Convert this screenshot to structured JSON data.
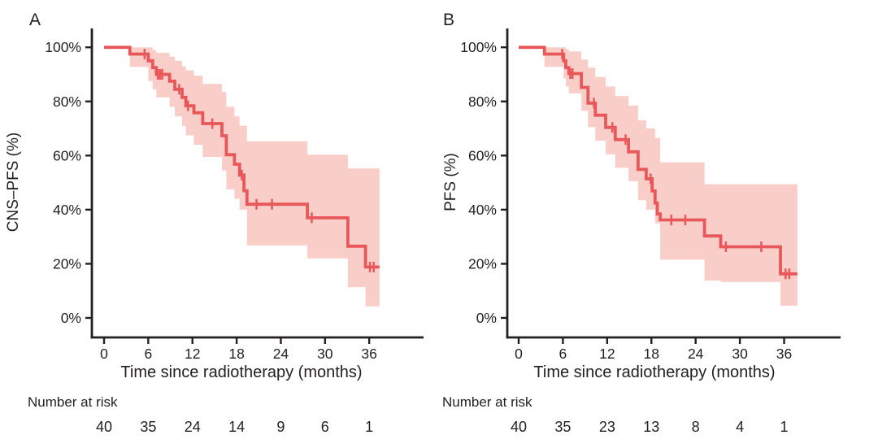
{
  "colors": {
    "curve": "#e8585b",
    "band": "#f9cec9",
    "axis": "#231f20",
    "text": "#231f20",
    "background": "#ffffff"
  },
  "chart_data": [
    {
      "type": "line",
      "subtype": "kaplan-meier-step",
      "panel_label": "A",
      "ylabel": "CNS–PFS (%)",
      "xlabel": "Time since radiotherapy (months)",
      "x_ticks": [
        "0",
        "6",
        "12",
        "18",
        "24",
        "30",
        "36"
      ],
      "x_tick_values": [
        0,
        6,
        12,
        18,
        24,
        30,
        36
      ],
      "y_ticks": [
        "0%",
        "20%",
        "40%",
        "60%",
        "80%",
        "100%"
      ],
      "y_tick_values": [
        0,
        20,
        40,
        60,
        80,
        100
      ],
      "xlim": [
        0,
        38
      ],
      "ylim": [
        0,
        100
      ],
      "grid": false,
      "legend": "none",
      "risk_label": "Number at risk",
      "number_at_risk": [
        "40",
        "35",
        "24",
        "14",
        "9",
        "6",
        "1"
      ],
      "end_time": 37.4,
      "steps": [
        [
          0,
          100
        ],
        [
          3.5,
          97.5
        ],
        [
          6.0,
          95
        ],
        [
          6.6,
          92.5
        ],
        [
          7.1,
          90
        ],
        [
          8.9,
          87.5
        ],
        [
          9.6,
          84.5
        ],
        [
          10.6,
          81.5
        ],
        [
          11.1,
          78.4
        ],
        [
          12.2,
          75.8
        ],
        [
          13.4,
          71.8
        ],
        [
          16.0,
          67.3
        ],
        [
          16.6,
          60.3
        ],
        [
          17.7,
          56.8
        ],
        [
          18.4,
          52.8
        ],
        [
          19.0,
          47.0
        ],
        [
          19.4,
          42.0
        ],
        [
          27.6,
          37.0
        ],
        [
          33.1,
          26.5
        ],
        [
          35.5,
          18.8
        ]
      ],
      "censors": [
        [
          5.5,
          97.5
        ],
        [
          7.3,
          90
        ],
        [
          7.6,
          90
        ],
        [
          7.9,
          90
        ],
        [
          10.2,
          84.5
        ],
        [
          11.4,
          78.4
        ],
        [
          14.7,
          71.8
        ],
        [
          18.7,
          52.8
        ],
        [
          20.7,
          42.0
        ],
        [
          22.8,
          42.0
        ],
        [
          28.2,
          37.0
        ],
        [
          36.1,
          18.8
        ],
        [
          36.6,
          18.8
        ]
      ],
      "band": [
        [
          3.5,
          100,
          92.8
        ],
        [
          6.0,
          100,
          87.5
        ],
        [
          6.6,
          99,
          84.5
        ],
        [
          7.1,
          98,
          81.5
        ],
        [
          8.9,
          96.5,
          78
        ],
        [
          9.6,
          95,
          74.5
        ],
        [
          10.6,
          93,
          71
        ],
        [
          11.1,
          91.5,
          67.5
        ],
        [
          12.2,
          89.5,
          64
        ],
        [
          13.4,
          86.5,
          59.5
        ],
        [
          16.0,
          83.5,
          54.5
        ],
        [
          16.6,
          78,
          47.5
        ],
        [
          17.7,
          74.5,
          44
        ],
        [
          18.4,
          71,
          40
        ],
        [
          19.4,
          65.3,
          26.8
        ],
        [
          27.6,
          60.3,
          22
        ],
        [
          33.1,
          55.2,
          11.4
        ],
        [
          35.5,
          55.2,
          4.3
        ]
      ]
    },
    {
      "type": "line",
      "subtype": "kaplan-meier-step",
      "panel_label": "B",
      "ylabel": "PFS (%)",
      "xlabel": "Time since radiotherapy (months)",
      "x_ticks": [
        "0",
        "6",
        "12",
        "18",
        "24",
        "30",
        "36"
      ],
      "x_tick_values": [
        0,
        6,
        12,
        18,
        24,
        30,
        36
      ],
      "y_ticks": [
        "0%",
        "20%",
        "40%",
        "60%",
        "80%",
        "100%"
      ],
      "y_tick_values": [
        0,
        20,
        40,
        60,
        80,
        100
      ],
      "xlim": [
        0,
        38
      ],
      "ylim": [
        0,
        100
      ],
      "grid": false,
      "legend": "none",
      "risk_label": "Number at risk",
      "number_at_risk": [
        "40",
        "35",
        "23",
        "13",
        "8",
        "4",
        "1"
      ],
      "end_time": 37.8,
      "steps": [
        [
          0,
          100
        ],
        [
          3.5,
          97.5
        ],
        [
          6.1,
          95
        ],
        [
          6.4,
          92.5
        ],
        [
          6.8,
          90.3
        ],
        [
          8.5,
          85.2
        ],
        [
          9.4,
          79.4
        ],
        [
          10.4,
          74.9
        ],
        [
          11.8,
          70.4
        ],
        [
          13.1,
          65.9
        ],
        [
          14.9,
          61.4
        ],
        [
          16.2,
          54.9
        ],
        [
          17.3,
          51.4
        ],
        [
          18.1,
          46.9
        ],
        [
          18.5,
          42.5
        ],
        [
          18.8,
          38.4
        ],
        [
          19.2,
          36.2
        ],
        [
          25.2,
          30.3
        ],
        [
          27.4,
          26.3
        ],
        [
          35.5,
          16.3
        ]
      ],
      "censors": [
        [
          5.9,
          97.5
        ],
        [
          7.0,
          90.3
        ],
        [
          7.3,
          90.3
        ],
        [
          10.2,
          79.4
        ],
        [
          12.7,
          70.4
        ],
        [
          14.5,
          65.9
        ],
        [
          17.9,
          51.4
        ],
        [
          20.7,
          36.2
        ],
        [
          22.6,
          36.2
        ],
        [
          28.1,
          26.3
        ],
        [
          32.9,
          26.3
        ],
        [
          36.2,
          16.3
        ],
        [
          36.7,
          16.3
        ]
      ],
      "band": [
        [
          3.5,
          100,
          92.8
        ],
        [
          6.1,
          100,
          88.5
        ],
        [
          6.4,
          99.3,
          85.5
        ],
        [
          6.8,
          98.5,
          83
        ],
        [
          8.5,
          95.5,
          76.5
        ],
        [
          9.4,
          92.5,
          70.5
        ],
        [
          10.4,
          89,
          65.5
        ],
        [
          11.8,
          85.5,
          60.5
        ],
        [
          13.1,
          82,
          55.5
        ],
        [
          14.9,
          78.5,
          50.5
        ],
        [
          16.2,
          73,
          43.5
        ],
        [
          17.3,
          70,
          40
        ],
        [
          18.5,
          66.5,
          35
        ],
        [
          19.2,
          57.5,
          21.5
        ],
        [
          25.2,
          49.4,
          13.8
        ],
        [
          27.4,
          49.4,
          13.3
        ],
        [
          35.5,
          49.4,
          4.5
        ]
      ]
    }
  ]
}
